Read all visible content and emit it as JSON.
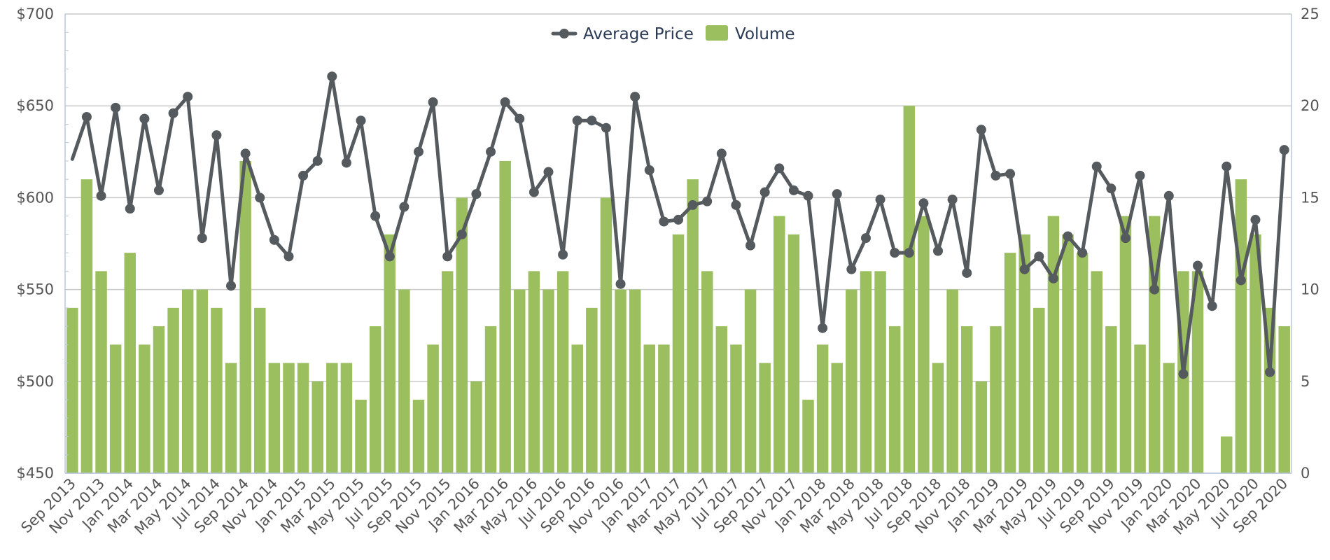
{
  "chart_data": {
    "type": "bar",
    "legend": {
      "placement": "top-center",
      "items": [
        {
          "name": "Average Price",
          "kind": "line-marker",
          "color": "#555a5e"
        },
        {
          "name": "Volume",
          "kind": "bar",
          "color": "#9bbf5e"
        }
      ]
    },
    "x_tick_labels": [
      "Sep 2013",
      "Nov 2013",
      "Jan 2014",
      "Mar 2014",
      "May 2014",
      "Jul 2014",
      "Sep 2014",
      "Nov 2014",
      "Jan 2015",
      "Mar 2015",
      "May 2015",
      "Jul 2015",
      "Sep 2015",
      "Nov 2015",
      "Jan 2016",
      "Mar 2016",
      "May 2016",
      "Jul 2016",
      "Sep 2016",
      "Nov 2016",
      "Jan 2017",
      "Mar 2017",
      "May 2017",
      "Jul 2017",
      "Sep 2017",
      "Nov 2017",
      "Jan 2018",
      "Mar 2018",
      "May 2018",
      "Jul 2018",
      "Sep 2018",
      "Nov 2018",
      "Jan 2019",
      "Mar 2019",
      "May 2019",
      "Jul 2019",
      "Sep 2019",
      "Nov 2019",
      "Jan 2020",
      "Mar 2020",
      "May 2020",
      "Jul 2020",
      "Sep 2020"
    ],
    "y_left": {
      "min": 450,
      "max": 700,
      "ticks": [
        "$450",
        "$500",
        "$550",
        "$600",
        "$650",
        "$700"
      ]
    },
    "y_right": {
      "min": 0,
      "max": 25,
      "ticks": [
        "0",
        "5",
        "10",
        "15",
        "20",
        "25"
      ]
    },
    "grid": true,
    "series": [
      {
        "name": "Volume",
        "type": "bar",
        "axis": "right",
        "color": "#9bbf5e",
        "values": [
          9,
          16,
          11,
          7,
          12,
          7,
          8,
          9,
          10,
          10,
          9,
          6,
          17,
          9,
          6,
          6,
          6,
          5,
          6,
          6,
          4,
          8,
          13,
          10,
          4,
          7,
          11,
          15,
          5,
          8,
          17,
          10,
          11,
          10,
          11,
          7,
          9,
          15,
          10,
          10,
          7,
          7,
          13,
          16,
          11,
          8,
          7,
          10,
          6,
          14,
          13,
          4,
          7,
          6,
          10,
          11,
          11,
          8,
          20,
          14,
          6,
          10,
          8,
          5,
          8,
          12,
          13,
          9,
          14,
          13,
          12,
          11,
          8,
          14,
          7,
          14,
          6,
          11,
          11,
          0,
          2,
          16,
          13,
          9,
          8
        ]
      },
      {
        "name": "Average Price",
        "type": "line",
        "axis": "left",
        "color": "#555a5e",
        "values": [
          621,
          644,
          601,
          649,
          594,
          643,
          604,
          646,
          655,
          578,
          634,
          552,
          624,
          600,
          577,
          568,
          612,
          620,
          666,
          619,
          642,
          590,
          568,
          595,
          625,
          652,
          568,
          580,
          602,
          625,
          652,
          643,
          603,
          614,
          569,
          642,
          642,
          638,
          553,
          655,
          615,
          587,
          588,
          596,
          598,
          624,
          596,
          574,
          603,
          616,
          604,
          601,
          529,
          602,
          561,
          578,
          599,
          570,
          570,
          597,
          571,
          599,
          559,
          637,
          612,
          613,
          561,
          568,
          556,
          579,
          570,
          617,
          605,
          578,
          612,
          550,
          601,
          504,
          563,
          541,
          617,
          555,
          588,
          505,
          626
        ]
      }
    ]
  }
}
